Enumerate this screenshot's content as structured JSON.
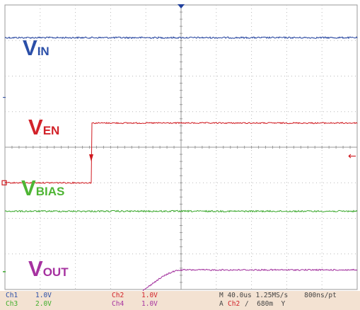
{
  "chart_data": {
    "type": "line",
    "title": "",
    "series": [
      {
        "name": "VIN",
        "label_main": "V",
        "label_sub": "IN",
        "color": "#1f3f9c"
      },
      {
        "name": "VEN",
        "label_main": "V",
        "label_sub": "EN",
        "color": "#d01a20"
      },
      {
        "name": "VBIAS",
        "label_main": "V",
        "label_sub": "BIAS",
        "color": "#3aa82c"
      },
      {
        "name": "VOUT",
        "label_main": "V",
        "label_sub": "OUT",
        "color": "#a12e9c"
      }
    ],
    "grid": true,
    "x_divisions": 10,
    "y_divisions": 8
  },
  "status": {
    "ch1_name": "Ch1",
    "ch1_scale": "1.0V",
    "ch2_name": "Ch2",
    "ch2_scale": "1.0V",
    "ch3_name": "Ch3",
    "ch3_scale": "2.0V",
    "ch4_name": "Ch4",
    "ch4_scale": "1.0V",
    "timebase": "M 40.0us 1.25MS/s    800ns/pt",
    "trigger_prefix": "A",
    "trigger_source": "Ch2",
    "trigger_level": "∕  680m  Y"
  },
  "colors": {
    "grid": "#b8b8b8",
    "frame": "#9a9a9a",
    "ch1": "#1f3f9c",
    "ch2": "#d01a20",
    "ch3": "#3aa82c",
    "ch4": "#a12e9c"
  }
}
